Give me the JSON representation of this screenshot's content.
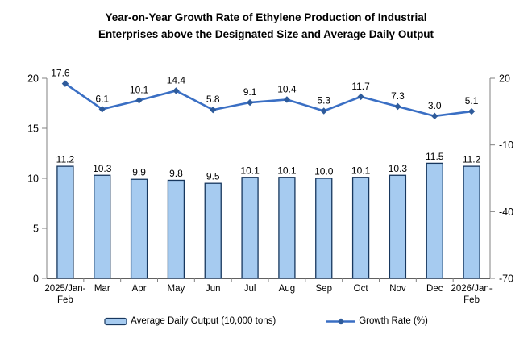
{
  "title": {
    "line1": "Year-on-Year Growth Rate of Ethylene Production of Industrial",
    "line2": "Enterprises above the Designated Size and Average Daily Output"
  },
  "chart_data": {
    "type": "combo",
    "categories": [
      "2025/Jan-Feb",
      "Mar",
      "Apr",
      "May",
      "Jun",
      "Jul",
      "Aug",
      "Sep",
      "Oct",
      "Nov",
      "Dec",
      "2026/Jan-Feb"
    ],
    "series": [
      {
        "name": "Average Daily Output (10,000 tons)",
        "type": "bar",
        "axis": "left",
        "color": "#A6CBF0",
        "border_color": "#17375E",
        "values": [
          11.2,
          10.3,
          9.9,
          9.8,
          9.5,
          10.1,
          10.1,
          10.0,
          10.1,
          10.3,
          11.5,
          11.2
        ]
      },
      {
        "name": "Growth Rate (%)",
        "type": "line",
        "axis": "right",
        "color": "#3A6FC4",
        "marker_color": "#2E5B9B",
        "values": [
          17.6,
          6.1,
          10.1,
          14.4,
          5.8,
          9.1,
          10.4,
          5.3,
          11.7,
          7.3,
          3.0,
          5.1
        ]
      }
    ],
    "left_axis": {
      "range": [
        0,
        20
      ],
      "ticks": [
        0,
        5,
        10,
        15,
        20
      ]
    },
    "right_axis": {
      "range": [
        -70,
        20
      ],
      "ticks": [
        -70,
        -40,
        -10,
        20
      ]
    },
    "axis_color": "#808080",
    "baseline_color": "#000000",
    "label_color": "#000000",
    "grid": false,
    "legend_position": "bottom"
  }
}
